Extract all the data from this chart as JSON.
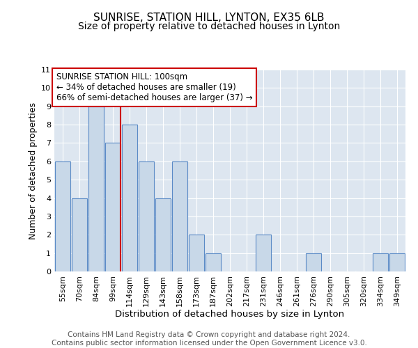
{
  "title1": "SUNRISE, STATION HILL, LYNTON, EX35 6LB",
  "title2": "Size of property relative to detached houses in Lynton",
  "xlabel": "Distribution of detached houses by size in Lynton",
  "ylabel": "Number of detached properties",
  "categories": [
    "55sqm",
    "70sqm",
    "84sqm",
    "99sqm",
    "114sqm",
    "129sqm",
    "143sqm",
    "158sqm",
    "173sqm",
    "187sqm",
    "202sqm",
    "217sqm",
    "231sqm",
    "246sqm",
    "261sqm",
    "276sqm",
    "290sqm",
    "305sqm",
    "320sqm",
    "334sqm",
    "349sqm"
  ],
  "values": [
    6,
    4,
    9,
    7,
    8,
    6,
    4,
    6,
    2,
    1,
    0,
    0,
    2,
    0,
    0,
    1,
    0,
    0,
    0,
    1,
    1
  ],
  "bar_color": "#c8d8e8",
  "bar_edge_color": "#5a8ac6",
  "subject_bar_index": 3,
  "subject_line_color": "#cc0000",
  "ylim": [
    0,
    11
  ],
  "yticks": [
    0,
    1,
    2,
    3,
    4,
    5,
    6,
    7,
    8,
    9,
    10,
    11
  ],
  "annotation_text": "SUNRISE STATION HILL: 100sqm\n← 34% of detached houses are smaller (19)\n66% of semi-detached houses are larger (37) →",
  "annotation_box_color": "#cc0000",
  "background_color": "#dde6f0",
  "footer_text": "Contains HM Land Registry data © Crown copyright and database right 2024.\nContains public sector information licensed under the Open Government Licence v3.0.",
  "title1_fontsize": 11,
  "title2_fontsize": 10,
  "xlabel_fontsize": 9.5,
  "ylabel_fontsize": 9,
  "tick_fontsize": 8,
  "annotation_fontsize": 8.5,
  "footer_fontsize": 7.5
}
